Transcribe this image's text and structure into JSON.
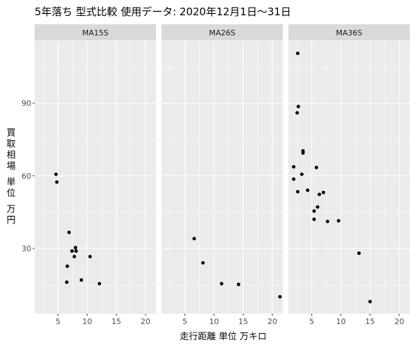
{
  "chart_data": {
    "type": "scatter",
    "title": "5年落ち 型式比較 使用データ: 2020年12月1日～31日",
    "xlabel": "走行距離 単位 万キロ",
    "ylabel": "買取相場 単位 万円",
    "xlim": [
      1,
      21.8
    ],
    "ylim": [
      3,
      116
    ],
    "xticks": [
      5,
      10,
      15,
      20
    ],
    "yticks": [
      30,
      60,
      90
    ],
    "grid": true,
    "color": "#000000",
    "panels": [
      {
        "name": "MA15S",
        "x": [
          4.65,
          4.8,
          6.9,
          7.4,
          7.8,
          8.0,
          8.1,
          6.6,
          10.5,
          6.5,
          9.0,
          12.1
        ],
        "values": [
          60.6,
          57.4,
          36.6,
          28.9,
          26.6,
          30.3,
          28.9,
          22.6,
          26.6,
          16.0,
          16.9,
          15.4
        ]
      },
      {
        "name": "MA26S",
        "x": [
          6.6,
          8.1,
          11.3,
          14.2,
          21.3
        ],
        "values": [
          34.0,
          24.0,
          15.4,
          15.1,
          10.0
        ]
      },
      {
        "name": "MA36S",
        "x": [
          2.6,
          2.7,
          2.5,
          3.5,
          3.5,
          1.9,
          1.9,
          3.3,
          5.8,
          2.6,
          4.3,
          6.3,
          7.0,
          6.0,
          5.4,
          5.4,
          7.7,
          9.6,
          13.1,
          15.0
        ],
        "values": [
          110.6,
          88.6,
          86.0,
          70.3,
          69.4,
          63.7,
          58.6,
          60.6,
          63.4,
          53.4,
          54.0,
          52.3,
          53.1,
          47.1,
          45.4,
          42.0,
          41.1,
          41.4,
          28.0,
          8.0
        ]
      }
    ]
  }
}
